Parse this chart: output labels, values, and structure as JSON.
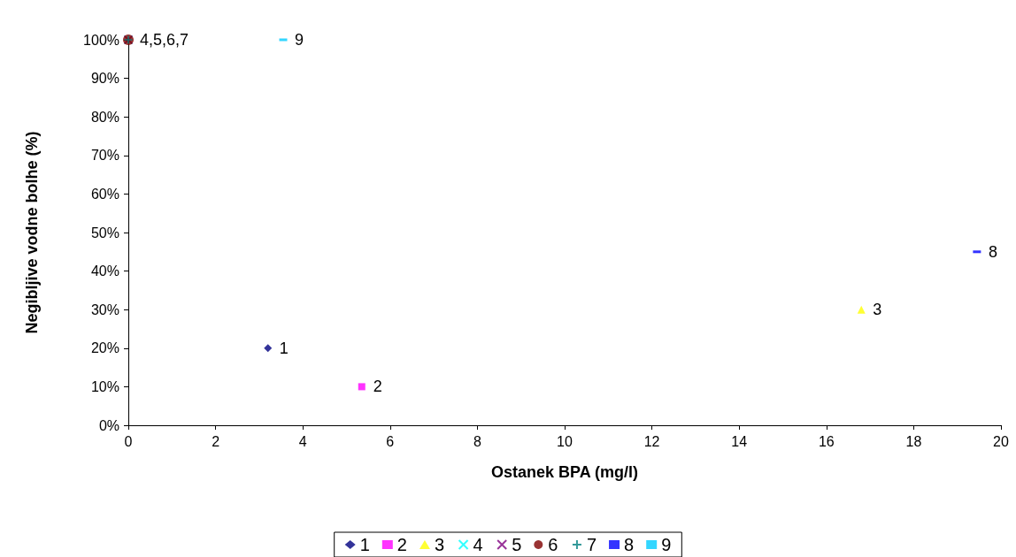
{
  "chart_data": {
    "type": "scatter",
    "xlabel": "Ostanek BPA (mg/l)",
    "ylabel": "Negibljive vodne bolhe (%)",
    "xlim": [
      0,
      20
    ],
    "xticks": [
      0,
      2,
      4,
      6,
      8,
      10,
      12,
      14,
      16,
      18,
      20
    ],
    "ylim": [
      0,
      100
    ],
    "yticks": [
      {
        "value": 0,
        "label": "0%"
      },
      {
        "value": 10,
        "label": "10%"
      },
      {
        "value": 20,
        "label": "20%"
      },
      {
        "value": 30,
        "label": "30%"
      },
      {
        "value": 40,
        "label": "40%"
      },
      {
        "value": 50,
        "label": "50%"
      },
      {
        "value": 60,
        "label": "60%"
      },
      {
        "value": 70,
        "label": "70%"
      },
      {
        "value": 80,
        "label": "80%"
      },
      {
        "value": 90,
        "label": "90%"
      },
      {
        "value": 100,
        "label": "100%"
      }
    ],
    "grid": false,
    "legend": "bottom",
    "series": [
      {
        "name": "1",
        "color": "#000080",
        "marker": "diamond",
        "x": [
          3.2
        ],
        "values": [
          20
        ]
      },
      {
        "name": "2",
        "color": "#ff00ff",
        "marker": "square",
        "x": [
          5.35
        ],
        "values": [
          10
        ]
      },
      {
        "name": "3",
        "color": "#ffff00",
        "marker": "triangle",
        "x": [
          16.8
        ],
        "values": [
          30
        ]
      },
      {
        "name": "4",
        "color": "#00ffff",
        "marker": "cross",
        "x": [
          0
        ],
        "values": [
          100
        ]
      },
      {
        "name": "5",
        "color": "#800080",
        "marker": "cross",
        "x": [
          0
        ],
        "values": [
          100
        ]
      },
      {
        "name": "6",
        "color": "#800000",
        "marker": "circle",
        "x": [
          0
        ],
        "values": [
          100
        ]
      },
      {
        "name": "7",
        "color": "#008080",
        "marker": "plus",
        "x": [
          0
        ],
        "values": [
          100
        ]
      },
      {
        "name": "8",
        "color": "#0000ff",
        "x": [
          19.45
        ],
        "values": [
          45
        ]
      },
      {
        "name": "9",
        "color": "#00ccff",
        "x": [
          3.55
        ],
        "values": [
          100
        ]
      }
    ],
    "annotations": [
      {
        "text": "1",
        "x": 3.2,
        "y": 20
      },
      {
        "text": "2",
        "x": 5.35,
        "y": 10
      },
      {
        "text": "3",
        "x": 16.8,
        "y": 30
      },
      {
        "text": "4,5,6,7",
        "x": 0,
        "y": 100
      },
      {
        "text": "8",
        "x": 19.45,
        "y": 45
      },
      {
        "text": "9",
        "x": 3.55,
        "y": 100
      }
    ]
  }
}
